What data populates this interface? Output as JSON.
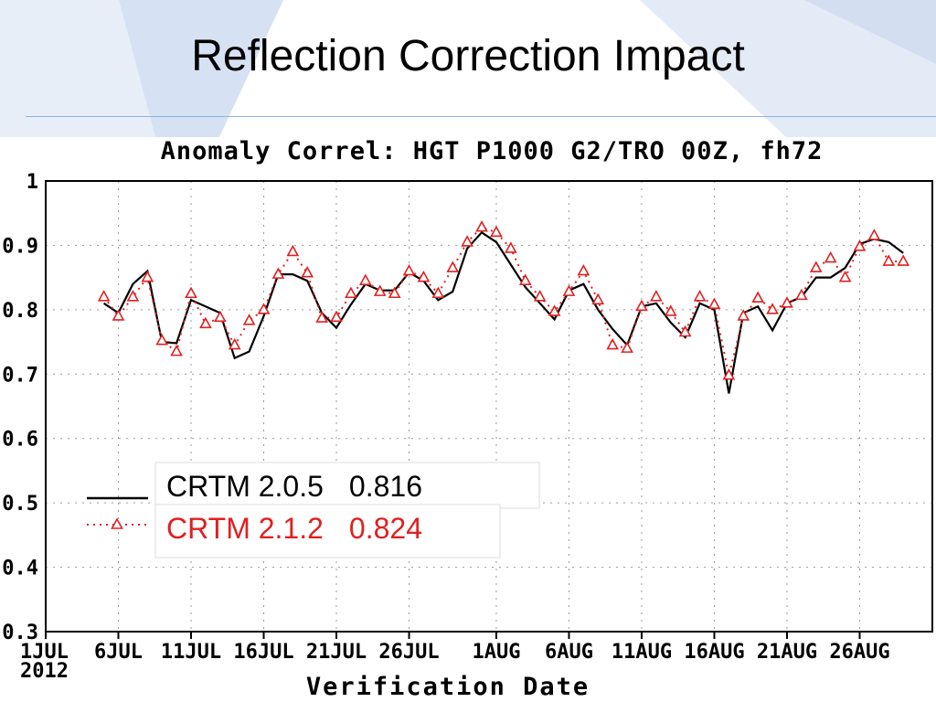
{
  "slide": {
    "title": "Reflection Correction Impact"
  },
  "chart_data": {
    "type": "line",
    "title": "Anomaly Correl: HGT P1000 G2/TRO 00Z, fh72",
    "xlabel": "Verification Date",
    "ylabel": "",
    "ylim": [
      0.3,
      1.0
    ],
    "yticks": [
      "1",
      "0.9",
      "0.8",
      "0.7",
      "0.6",
      "0.5",
      "0.4",
      "0.3"
    ],
    "x_tick_labels": [
      "1JUL",
      "6JUL",
      "11JUL",
      "16JUL",
      "21JUL",
      "26JUL",
      "1AUG",
      "6AUG",
      "11AUG",
      "16AUG",
      "21AUG",
      "26AUG"
    ],
    "year_label": "2012",
    "x_start": "2012-07-01",
    "x_end": "2012-08-31",
    "grid": true,
    "legend_position": "lower-left",
    "series": [
      {
        "name": "CRTM 2.0.5",
        "score": "0.816",
        "color": "#000000",
        "style": "solid",
        "x": [
          "2012-07-05",
          "2012-07-06",
          "2012-07-07",
          "2012-07-08",
          "2012-07-09",
          "2012-07-10",
          "2012-07-11",
          "2012-07-12",
          "2012-07-13",
          "2012-07-14",
          "2012-07-15",
          "2012-07-16",
          "2012-07-17",
          "2012-07-18",
          "2012-07-19",
          "2012-07-20",
          "2012-07-21",
          "2012-07-22",
          "2012-07-23",
          "2012-07-24",
          "2012-07-25",
          "2012-07-26",
          "2012-07-27",
          "2012-07-28",
          "2012-07-29",
          "2012-07-30",
          "2012-07-31",
          "2012-08-01",
          "2012-08-02",
          "2012-08-03",
          "2012-08-04",
          "2012-08-05",
          "2012-08-06",
          "2012-08-07",
          "2012-08-08",
          "2012-08-09",
          "2012-08-10",
          "2012-08-11",
          "2012-08-12",
          "2012-08-13",
          "2012-08-14",
          "2012-08-15",
          "2012-08-16",
          "2012-08-17",
          "2012-08-18",
          "2012-08-19",
          "2012-08-20",
          "2012-08-21",
          "2012-08-22",
          "2012-08-23",
          "2012-08-24",
          "2012-08-25",
          "2012-08-26",
          "2012-08-27",
          "2012-08-28",
          "2012-08-29"
        ],
        "values": [
          0.81,
          0.795,
          0.84,
          0.86,
          0.75,
          0.748,
          0.815,
          0.805,
          0.795,
          0.725,
          0.735,
          0.79,
          0.855,
          0.855,
          0.845,
          0.795,
          0.772,
          0.808,
          0.84,
          0.83,
          0.83,
          0.858,
          0.845,
          0.815,
          0.828,
          0.895,
          0.92,
          0.905,
          0.87,
          0.835,
          0.81,
          0.785,
          0.83,
          0.84,
          0.8,
          0.77,
          0.745,
          0.805,
          0.81,
          0.78,
          0.757,
          0.81,
          0.8,
          0.67,
          0.795,
          0.805,
          0.768,
          0.81,
          0.82,
          0.85,
          0.85,
          0.865,
          0.902,
          0.91,
          0.905,
          0.888
        ]
      },
      {
        "name": "CRTM 2.1.2",
        "score": "0.824",
        "color": "#e02020",
        "style": "dotted-triangle",
        "x": [
          "2012-07-05",
          "2012-07-06",
          "2012-07-07",
          "2012-07-08",
          "2012-07-09",
          "2012-07-10",
          "2012-07-11",
          "2012-07-12",
          "2012-07-13",
          "2012-07-14",
          "2012-07-15",
          "2012-07-16",
          "2012-07-17",
          "2012-07-18",
          "2012-07-19",
          "2012-07-20",
          "2012-07-21",
          "2012-07-22",
          "2012-07-23",
          "2012-07-24",
          "2012-07-25",
          "2012-07-26",
          "2012-07-27",
          "2012-07-28",
          "2012-07-29",
          "2012-07-30",
          "2012-07-31",
          "2012-08-01",
          "2012-08-02",
          "2012-08-03",
          "2012-08-04",
          "2012-08-05",
          "2012-08-06",
          "2012-08-07",
          "2012-08-08",
          "2012-08-09",
          "2012-08-10",
          "2012-08-11",
          "2012-08-12",
          "2012-08-13",
          "2012-08-14",
          "2012-08-15",
          "2012-08-16",
          "2012-08-17",
          "2012-08-18",
          "2012-08-19",
          "2012-08-20",
          "2012-08-21",
          "2012-08-22",
          "2012-08-23",
          "2012-08-24",
          "2012-08-25",
          "2012-08-26",
          "2012-08-27",
          "2012-08-28",
          "2012-08-29"
        ],
        "values": [
          0.82,
          0.79,
          0.82,
          0.85,
          0.752,
          0.735,
          0.825,
          0.778,
          0.788,
          0.745,
          0.783,
          0.8,
          0.855,
          0.89,
          0.857,
          0.787,
          0.788,
          0.825,
          0.845,
          0.828,
          0.825,
          0.86,
          0.85,
          0.825,
          0.865,
          0.905,
          0.928,
          0.92,
          0.895,
          0.845,
          0.82,
          0.797,
          0.828,
          0.86,
          0.815,
          0.745,
          0.74,
          0.805,
          0.82,
          0.797,
          0.765,
          0.82,
          0.808,
          0.698,
          0.79,
          0.818,
          0.8,
          0.81,
          0.822,
          0.865,
          0.88,
          0.85,
          0.898,
          0.915,
          0.875,
          0.875
        ]
      }
    ]
  }
}
